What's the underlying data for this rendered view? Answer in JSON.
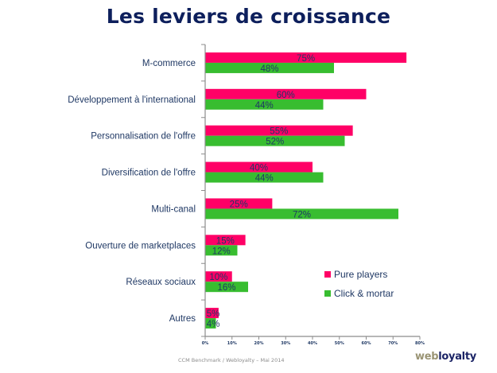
{
  "chart_data": {
    "type": "bar",
    "orientation": "horizontal",
    "title": "Les leviers de croissance",
    "xlabel": "",
    "ylabel": "",
    "xlim": [
      0,
      80
    ],
    "x_ticks": [
      "0%",
      "10%",
      "20%",
      "30%",
      "40%",
      "50%",
      "60%",
      "70%",
      "80%"
    ],
    "x_tick_values": [
      0,
      10,
      20,
      30,
      40,
      50,
      60,
      70,
      80
    ],
    "grid": false,
    "legend_position": "bottom-right",
    "categories": [
      "M-commerce",
      "Développement à l'international",
      "Personnalisation de l'offre",
      "Diversification de l'offre",
      "Multi-canal",
      "Ouverture de marketplaces",
      "Réseaux sociaux",
      "Autres"
    ],
    "series": [
      {
        "name": "Pure players",
        "color": "#ff0066",
        "values": [
          75,
          60,
          55,
          40,
          25,
          15,
          10,
          5
        ]
      },
      {
        "name": "Click & mortar",
        "color": "#38bd30",
        "values": [
          48,
          44,
          52,
          44,
          72,
          12,
          16,
          4
        ]
      }
    ],
    "value_suffix": "%"
  },
  "footer": {
    "source": "CCM Benchmark / Webloyalty – Mai 2014",
    "logo_part1": "web",
    "logo_part2": "loyalty"
  }
}
